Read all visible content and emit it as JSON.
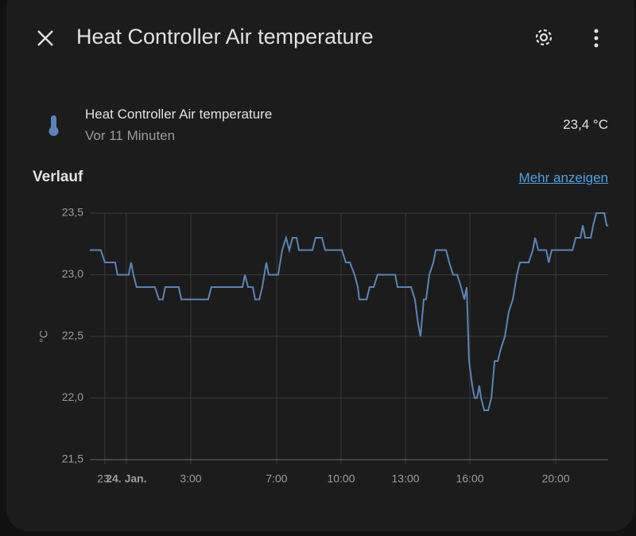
{
  "header": {
    "title": "Heat Controller Air temperature"
  },
  "entity": {
    "name": "Heat Controller Air temperature",
    "time": "Vor 11 Minuten",
    "state": "23,4 °C"
  },
  "history": {
    "title": "Verlauf",
    "link": "Mehr anzeigen"
  },
  "chart_data": {
    "type": "line",
    "ylabel": "°C",
    "grid": true,
    "xlim": [
      -1.7,
      22.44
    ],
    "ylim": [
      21.5,
      23.5
    ],
    "xticks": [
      {
        "value": -1,
        "label": "23."
      },
      {
        "value": 0,
        "label": "24. Jan."
      },
      {
        "value": 3,
        "label": "3:00"
      },
      {
        "value": 7,
        "label": "7:00"
      },
      {
        "value": 10,
        "label": "10:00"
      },
      {
        "value": 13,
        "label": "13:00"
      },
      {
        "value": 16,
        "label": "16:00"
      },
      {
        "value": 20,
        "label": "20:00"
      }
    ],
    "yticks": [
      {
        "value": 21.5,
        "label": "21,5"
      },
      {
        "value": 22,
        "label": "22,0"
      },
      {
        "value": 22.5,
        "label": "22,5"
      },
      {
        "value": 23,
        "label": "23,0"
      },
      {
        "value": 23.5,
        "label": "23,5"
      }
    ],
    "series": [
      {
        "color": "#5b84b8",
        "x": [
          -1.7,
          -1.19,
          -1.0,
          -0.52,
          -0.41,
          0.11,
          0.22,
          0.33,
          0.48,
          1.33,
          1.52,
          1.7,
          1.81,
          2.44,
          2.56,
          3.81,
          3.96,
          5.41,
          5.52,
          5.67,
          5.89,
          6.0,
          6.19,
          6.33,
          6.52,
          6.63,
          7.07,
          7.26,
          7.44,
          7.59,
          7.74,
          7.93,
          8.04,
          8.67,
          8.81,
          9.11,
          9.26,
          10.04,
          10.22,
          10.41,
          10.63,
          10.78,
          10.85,
          11.19,
          11.33,
          11.52,
          11.7,
          12.52,
          12.63,
          13.26,
          13.44,
          13.59,
          13.7,
          13.85,
          13.96,
          14.11,
          14.3,
          14.41,
          14.89,
          15.04,
          15.22,
          15.41,
          15.59,
          15.74,
          15.85,
          15.96,
          16.11,
          16.22,
          16.33,
          16.44,
          16.52,
          16.67,
          16.85,
          17.0,
          17.15,
          17.3,
          17.44,
          17.63,
          17.81,
          18.0,
          18.19,
          18.33,
          18.74,
          18.93,
          19.04,
          19.19,
          19.56,
          19.67,
          19.81,
          20.78,
          20.93,
          21.15,
          21.26,
          21.37,
          21.63,
          21.74,
          21.89,
          22.26,
          22.37,
          22.44
        ],
        "values": [
          23.2,
          23.2,
          23.1,
          23.1,
          23.0,
          23.0,
          23.1,
          23.0,
          22.9,
          22.9,
          22.8,
          22.8,
          22.9,
          22.9,
          22.8,
          22.8,
          22.9,
          22.9,
          23.0,
          22.9,
          22.9,
          22.8,
          22.8,
          22.9,
          23.1,
          23.0,
          23.0,
          23.2,
          23.3,
          23.2,
          23.3,
          23.3,
          23.2,
          23.2,
          23.3,
          23.3,
          23.2,
          23.2,
          23.1,
          23.1,
          23.0,
          22.9,
          22.8,
          22.8,
          22.9,
          22.9,
          23.0,
          23.0,
          22.9,
          22.9,
          22.8,
          22.6,
          22.5,
          22.8,
          22.8,
          23.0,
          23.1,
          23.2,
          23.2,
          23.1,
          23.0,
          23.0,
          22.9,
          22.8,
          22.9,
          22.3,
          22.1,
          22.0,
          22.0,
          22.1,
          22.0,
          21.9,
          21.9,
          22.0,
          22.3,
          22.3,
          22.4,
          22.5,
          22.7,
          22.8,
          23.0,
          23.1,
          23.1,
          23.2,
          23.3,
          23.2,
          23.2,
          23.1,
          23.2,
          23.2,
          23.3,
          23.3,
          23.4,
          23.3,
          23.3,
          23.4,
          23.5,
          23.5,
          23.4,
          23.4
        ]
      }
    ]
  }
}
